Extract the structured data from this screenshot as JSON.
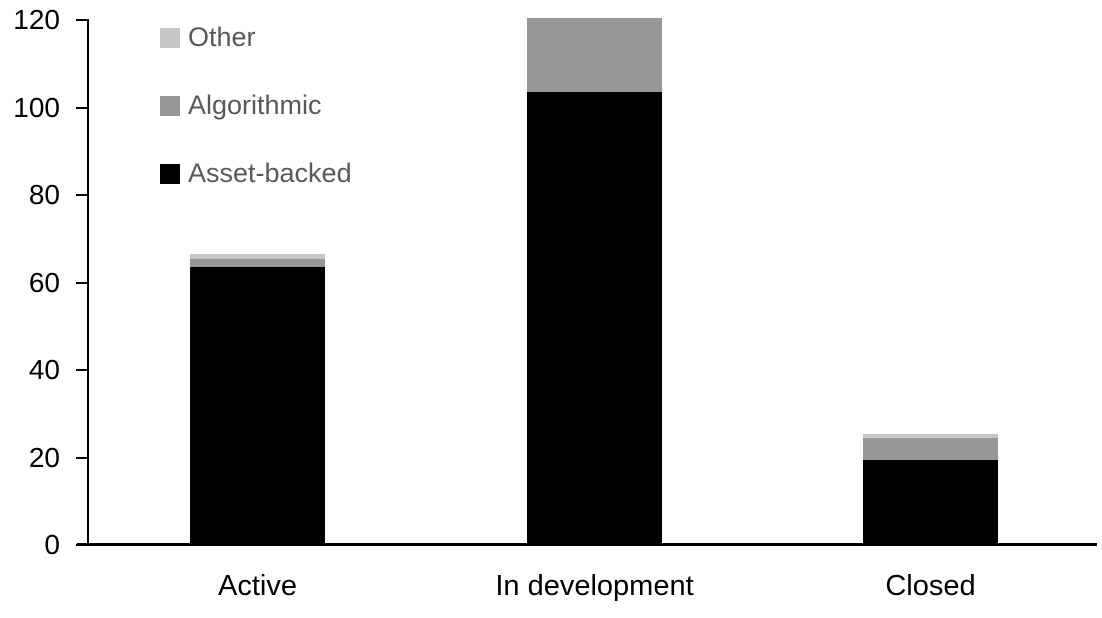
{
  "chart_data": {
    "type": "bar",
    "stacked": true,
    "title": "",
    "xlabel": "",
    "ylabel": "",
    "categories": [
      "Active",
      "In development",
      "Closed"
    ],
    "series": [
      {
        "name": "Asset-backed",
        "color": "#000000",
        "values": [
          63,
          103,
          19
        ]
      },
      {
        "name": "Algorithmic",
        "color": "#979797",
        "values": [
          2,
          17,
          5
        ]
      },
      {
        "name": "Other",
        "color": "#c6c6c6",
        "values": [
          1,
          0,
          1
        ]
      }
    ],
    "totals": [
      66,
      120,
      25
    ],
    "yticks": [
      0,
      20,
      40,
      60,
      80,
      100,
      120
    ],
    "ylim": [
      0,
      120
    ],
    "grid": false,
    "legend_position": "top-left-inside",
    "legend_order": [
      "Other",
      "Algorithmic",
      "Asset-backed"
    ],
    "legend_text_color": "#595959",
    "axis_color": "#000000",
    "background_color": "#ffffff"
  }
}
